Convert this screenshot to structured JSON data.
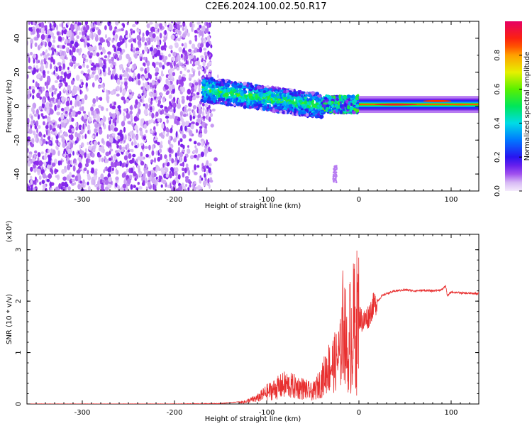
{
  "title": "C2E6.2024.100.02.50.R17",
  "chart_data": [
    {
      "type": "heatmap",
      "xlabel": "Height of straight line (km)",
      "ylabel": "Frequency (Hz)",
      "xlim": [
        -360,
        130
      ],
      "ylim": [
        -50,
        50
      ],
      "x_ticks": [
        "-300",
        "-200",
        "-100",
        "0",
        "100"
      ],
      "y_ticks": [
        "-40",
        "-20",
        "0",
        "20",
        "40"
      ],
      "colorbar": {
        "label": "Normalized spectral amplitude",
        "range": [
          0.0,
          1.0
        ],
        "ticks": [
          "0.0",
          "0.2",
          "0.4",
          "0.6",
          "0.8"
        ]
      },
      "regions": [
        {
          "x_range": [
            -360,
            -160
          ],
          "description": "diffuse low-amplitude noise across full band",
          "amplitude": 0.05
        },
        {
          "x_range": [
            -170,
            -40
          ],
          "freq_trend": [
            10,
            0
          ],
          "amplitude": 0.45
        },
        {
          "x_range": [
            -40,
            0
          ],
          "freq_trend": [
            0,
            1
          ],
          "amplitude": 0.55
        },
        {
          "x_range": [
            0,
            130
          ],
          "freq": 1,
          "amplitude": 0.85
        }
      ]
    },
    {
      "type": "line",
      "xlabel": "Height of straight line (km)",
      "ylabel": "SNR (10 * v/v)",
      "multiplier": "(x10⁴)",
      "xlim": [
        -360,
        130
      ],
      "ylim": [
        0,
        3.3
      ],
      "x_ticks": [
        "-300",
        "-200",
        "-100",
        "0",
        "100"
      ],
      "y_ticks": [
        "0",
        "1",
        "2",
        "3"
      ],
      "series": [
        {
          "color": "#e83030",
          "x": [
            -360,
            -300,
            -250,
            -200,
            -150,
            -125,
            -110,
            -100,
            -90,
            -80,
            -70,
            -60,
            -50,
            -40,
            -35,
            -30,
            -25,
            -20,
            -17,
            -15,
            -12,
            -10,
            -5,
            0,
            5,
            10,
            15,
            20,
            25,
            30,
            40,
            50,
            60,
            70,
            80,
            90,
            94,
            96,
            100,
            110,
            120,
            130
          ],
          "y": [
            0,
            0,
            0,
            0,
            0.01,
            0.05,
            0.15,
            0.3,
            0.4,
            0.5,
            0.45,
            0.4,
            0.3,
            0.6,
            0.9,
            1.0,
            1.1,
            1.3,
            2.2,
            1.9,
            1.0,
            1.3,
            1.5,
            1.7,
            1.6,
            1.7,
            1.9,
            2.0,
            2.1,
            2.15,
            2.2,
            2.22,
            2.2,
            2.21,
            2.2,
            2.22,
            2.3,
            2.1,
            2.18,
            2.16,
            2.15,
            2.15
          ]
        }
      ]
    }
  ]
}
